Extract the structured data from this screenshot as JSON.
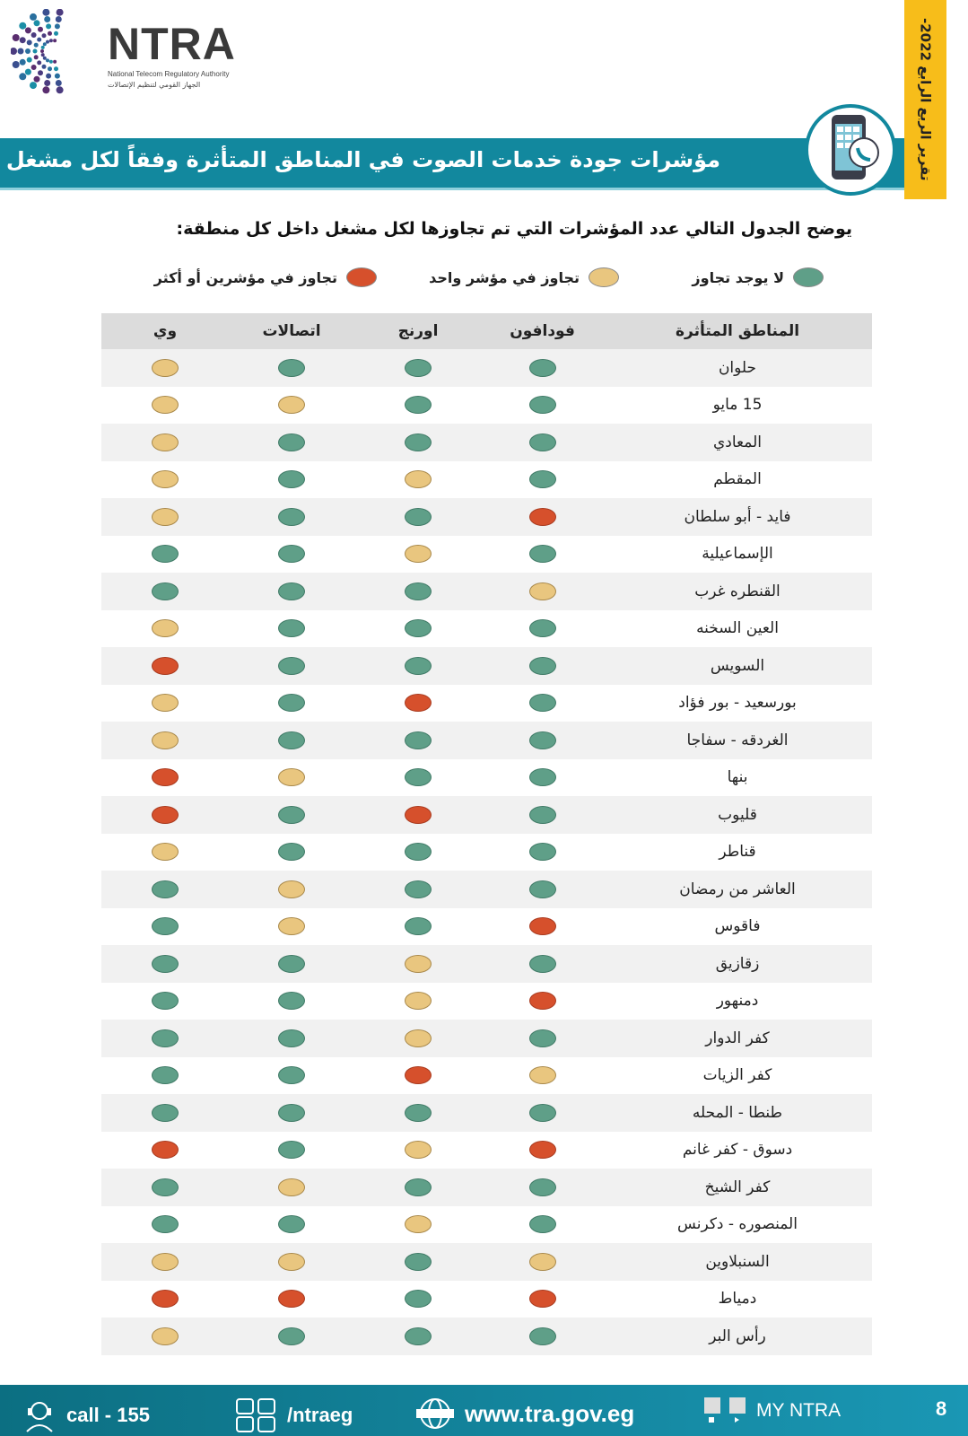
{
  "header": {
    "logo_text": "NTRA",
    "logo_subtitle_en": "National Telecom Regulatory Authority",
    "logo_subtitle_ar": "الجهاز القومي لتنظيم الإتصالات",
    "report_tab": "تقرير الربع الرابع 2022-",
    "title": "مؤشرات جودة خدمات الصوت في المناطق المتأثرة وفقاً لكل مشغل"
  },
  "intro": "يوضح الجدول التالي عدد المؤشرات التي تم تجاوزها لكل مشغل داخل كل منطقة:",
  "colors": {
    "green": "#5f9f88",
    "yellow": "#e9c67f",
    "red": "#d6502c",
    "teal": "#12889e",
    "gold": "#f7bd1a"
  },
  "legend": [
    {
      "status": "green",
      "label": "لا يوجد تجاوز"
    },
    {
      "status": "yellow",
      "label": "تجاوز في مؤشر واحد"
    },
    {
      "status": "red",
      "label": "تجاوز في مؤشرين أو أكثر"
    }
  ],
  "table": {
    "headers": [
      "المناطق المتأثرة",
      "فودافون",
      "اورنج",
      "اتصالات",
      "وي"
    ],
    "rows": [
      {
        "region": "حلوان",
        "status": [
          "green",
          "green",
          "green",
          "yellow"
        ]
      },
      {
        "region": "15 مايو",
        "status": [
          "green",
          "green",
          "yellow",
          "yellow"
        ]
      },
      {
        "region": "المعادي",
        "status": [
          "green",
          "green",
          "green",
          "yellow"
        ]
      },
      {
        "region": "المقطم",
        "status": [
          "green",
          "yellow",
          "green",
          "yellow"
        ]
      },
      {
        "region": "فايد - أبو سلطان",
        "status": [
          "red",
          "green",
          "green",
          "yellow"
        ]
      },
      {
        "region": "الإسماعيلية",
        "status": [
          "green",
          "yellow",
          "green",
          "green"
        ]
      },
      {
        "region": "القنطره غرب",
        "status": [
          "yellow",
          "green",
          "green",
          "green"
        ]
      },
      {
        "region": "العين السخنه",
        "status": [
          "green",
          "green",
          "green",
          "yellow"
        ]
      },
      {
        "region": "السويس",
        "status": [
          "green",
          "green",
          "green",
          "red"
        ]
      },
      {
        "region": "بورسعيد - بور فؤاد",
        "status": [
          "green",
          "red",
          "green",
          "yellow"
        ]
      },
      {
        "region": "الغردقه - سفاجا",
        "status": [
          "green",
          "green",
          "green",
          "yellow"
        ]
      },
      {
        "region": "بنها",
        "status": [
          "green",
          "green",
          "yellow",
          "red"
        ]
      },
      {
        "region": "قليوب",
        "status": [
          "green",
          "red",
          "green",
          "red"
        ]
      },
      {
        "region": "قناطر",
        "status": [
          "green",
          "green",
          "green",
          "yellow"
        ]
      },
      {
        "region": "العاشر من رمضان",
        "status": [
          "green",
          "green",
          "yellow",
          "green"
        ]
      },
      {
        "region": "فاقوس",
        "status": [
          "red",
          "green",
          "yellow",
          "green"
        ]
      },
      {
        "region": "زقازيق",
        "status": [
          "green",
          "yellow",
          "green",
          "green"
        ]
      },
      {
        "region": "دمنهور",
        "status": [
          "red",
          "yellow",
          "green",
          "green"
        ]
      },
      {
        "region": "كفر الدوار",
        "status": [
          "green",
          "yellow",
          "green",
          "green"
        ]
      },
      {
        "region": "كفر الزيات",
        "status": [
          "yellow",
          "red",
          "green",
          "green"
        ]
      },
      {
        "region": "طنطا - المحله",
        "status": [
          "green",
          "green",
          "green",
          "green"
        ]
      },
      {
        "region": "دسوق -  كفر غانم",
        "status": [
          "red",
          "yellow",
          "green",
          "red"
        ]
      },
      {
        "region": "كفر الشيخ",
        "status": [
          "green",
          "green",
          "yellow",
          "green"
        ]
      },
      {
        "region": "المنصوره - دكرنس",
        "status": [
          "green",
          "yellow",
          "green",
          "green"
        ]
      },
      {
        "region": "السنبلاوين",
        "status": [
          "yellow",
          "green",
          "yellow",
          "yellow"
        ]
      },
      {
        "region": "دمياط",
        "status": [
          "red",
          "green",
          "red",
          "red"
        ]
      },
      {
        "region": "رأس البر",
        "status": [
          "green",
          "green",
          "green",
          "yellow"
        ]
      }
    ]
  },
  "footer": {
    "call": "call - 155",
    "social": "/ntraeg",
    "website": "www.tra.gov.eg",
    "app": "MY NTRA",
    "page": "8"
  }
}
